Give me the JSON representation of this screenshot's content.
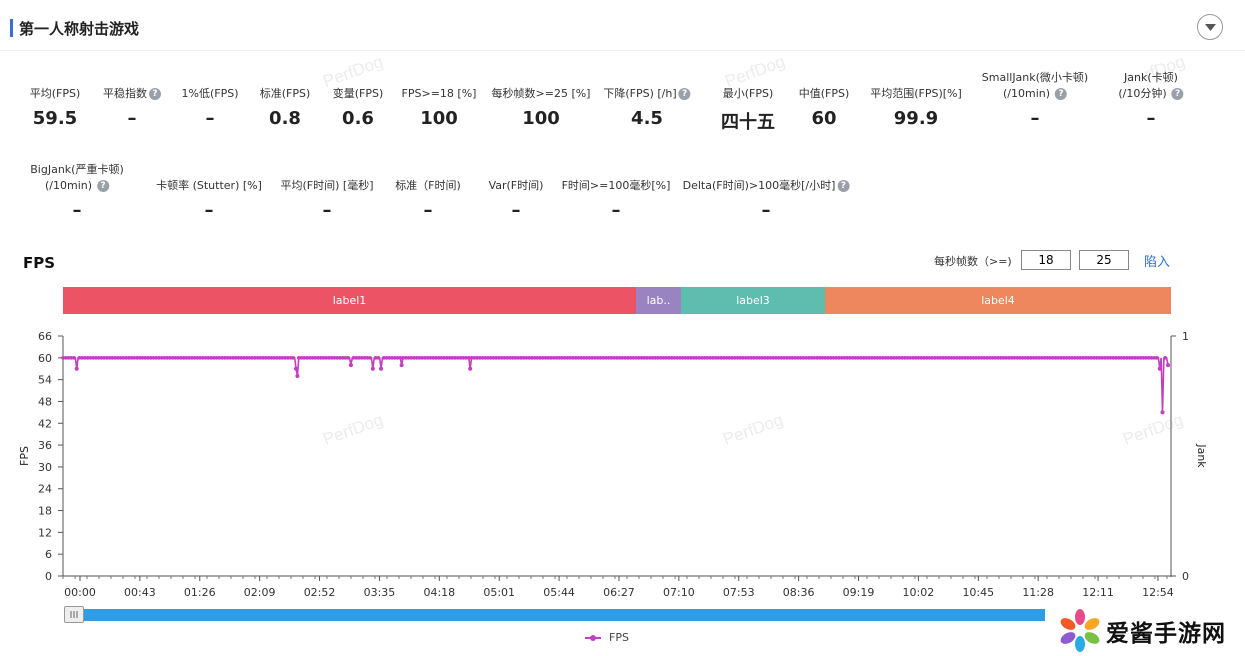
{
  "header": {
    "title": "第一人称射击游戏"
  },
  "stats_row1": [
    {
      "label": "平均(FPS)",
      "value": "59.5"
    },
    {
      "label": "平稳指数",
      "value": "–",
      "help": true
    },
    {
      "label": "1%低(FPS)",
      "value": "–"
    },
    {
      "label": "标准(FPS)",
      "value": "0.8"
    },
    {
      "label": "变量(FPS)",
      "value": "0.6"
    },
    {
      "label": "FPS>=18 [%]",
      "value": "100"
    },
    {
      "label": "每秒帧数>=25 [%]",
      "value": "100"
    },
    {
      "label": "下降(FPS) [/h]",
      "value": "4.5",
      "help": true
    },
    {
      "label": "最小(FPS)",
      "value": "四十五"
    },
    {
      "label": "中值(FPS)",
      "value": "60"
    },
    {
      "label": "平均范围(FPS)[%]",
      "value": "99.9"
    },
    {
      "label": "SmallJank(微小卡顿)",
      "label2": "(/10min)",
      "value": "–",
      "help": true
    },
    {
      "label": "Jank(卡顿)",
      "label2": "(/10分钟)",
      "value": "–",
      "help": true
    }
  ],
  "stats_row2": [
    {
      "label": "BigJank(严重卡顿)",
      "label2": "(/10min)",
      "value": "–",
      "help": true
    },
    {
      "label": "卡顿率 (Stutter) [%]",
      "value": "–"
    },
    {
      "label": "平均(F时间) [毫秒]",
      "value": "–"
    },
    {
      "label": "标准（F时间)",
      "value": "–"
    },
    {
      "label": "Var(F时间)",
      "value": "–"
    },
    {
      "label": "F时间>=100毫秒[%]",
      "value": "–"
    },
    {
      "label": "Delta(F时间)>100毫秒[/小时]",
      "value": "–",
      "help": true
    }
  ],
  "watermark": "PerfDog",
  "fps_section": {
    "title": "FPS",
    "threshold_label": "每秒帧数（>=)",
    "threshold1": "18",
    "threshold2": "25",
    "apply_label": "陷入"
  },
  "labels": [
    {
      "name": "label1",
      "color": "#ec5466"
    },
    {
      "name": "lab..",
      "color": "#9a83c1"
    },
    {
      "name": "label3",
      "color": "#5fbdb0"
    },
    {
      "name": "label4",
      "color": "#ee865e"
    }
  ],
  "legend": {
    "label": "FPS"
  },
  "brand": {
    "name": "爱酱手游网"
  },
  "colors": {
    "fps_line": "#c23fc0",
    "scrollbar": "#2e9de6",
    "accent": "#3a6fd8"
  },
  "chart_data": {
    "type": "line",
    "ylabel": "FPS",
    "y2label": "Jank",
    "ylim": [
      0,
      66
    ],
    "y_ticks": [
      "66",
      "60",
      "54",
      "48",
      "42",
      "36",
      "30",
      "24",
      "18",
      "12",
      "6",
      "0"
    ],
    "y2_ticks": [
      "1",
      "0"
    ],
    "x_ticks": [
      "00:00",
      "00:43",
      "01:26",
      "02:09",
      "02:52",
      "03:35",
      "04:18",
      "05:01",
      "05:44",
      "06:27",
      "07:10",
      "07:53",
      "08:36",
      "09:19",
      "10:02",
      "10:45",
      "11:28",
      "12:11",
      "12:54"
    ],
    "series": [
      {
        "name": "FPS",
        "baseline": 60,
        "dips": [
          {
            "t": 10,
            "fps": 57
          },
          {
            "t": 170,
            "fps": 57
          },
          {
            "t": 171,
            "fps": 55
          },
          {
            "t": 210,
            "fps": 58
          },
          {
            "t": 226,
            "fps": 57
          },
          {
            "t": 232,
            "fps": 57
          },
          {
            "t": 247,
            "fps": 58
          },
          {
            "t": 297,
            "fps": 57
          },
          {
            "t": 800,
            "fps": 57
          },
          {
            "t": 802,
            "fps": 45
          },
          {
            "t": 806,
            "fps": 58
          }
        ],
        "end_t": 806
      }
    ]
  }
}
